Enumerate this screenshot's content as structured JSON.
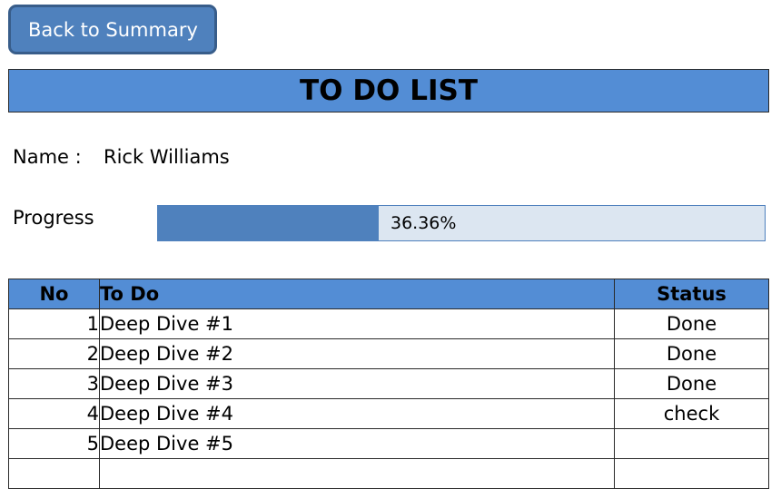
{
  "back_button": {
    "label": "Back to Summary"
  },
  "title": "TO DO LIST",
  "name": {
    "label": "Name :",
    "value": "Rick Williams"
  },
  "progress": {
    "label": "Progress",
    "text": "36.36%",
    "fraction": 0.3636,
    "fill_color": "#4f81bd",
    "track_color": "#dce6f1"
  },
  "table": {
    "headers": {
      "no": "No",
      "todo": "To Do",
      "status": "Status"
    },
    "header_color": "#538dd5",
    "rows": [
      {
        "no": "1",
        "todo": "Deep Dive #1",
        "status": "Done"
      },
      {
        "no": "2",
        "todo": "Deep Dive #2",
        "status": "Done"
      },
      {
        "no": "3",
        "todo": "Deep Dive #3",
        "status": "Done"
      },
      {
        "no": "4",
        "todo": "Deep Dive #4",
        "status": "check"
      },
      {
        "no": "5",
        "todo": "Deep Dive #5",
        "status": ""
      }
    ]
  }
}
